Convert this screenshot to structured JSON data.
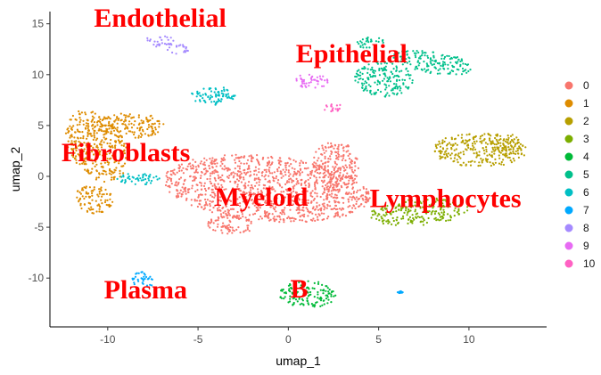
{
  "chart_data": {
    "type": "scatter",
    "title": "",
    "xlabel": "umap_1",
    "ylabel": "umap_2",
    "xlim": [
      -13.2,
      14.3
    ],
    "ylim": [
      -14.8,
      16.2
    ],
    "x_ticks": [
      -10,
      -5,
      0,
      5,
      10
    ],
    "y_ticks": [
      -10,
      -5,
      0,
      5,
      10,
      15
    ],
    "legend_position": "right",
    "legend": [
      {
        "label": "0",
        "color": "#F8766D"
      },
      {
        "label": "1",
        "color": "#DE8C00"
      },
      {
        "label": "2",
        "color": "#B79F00"
      },
      {
        "label": "3",
        "color": "#7CAE00"
      },
      {
        "label": "4",
        "color": "#00BA38"
      },
      {
        "label": "5",
        "color": "#00C08B"
      },
      {
        "label": "6",
        "color": "#00BFC4"
      },
      {
        "label": "7",
        "color": "#00A9FF"
      },
      {
        "label": "8",
        "color": "#A58AFF"
      },
      {
        "label": "9",
        "color": "#E76BF3"
      },
      {
        "label": "10",
        "color": "#FF61C3"
      }
    ],
    "clusters": [
      {
        "id": "0",
        "blobs": [
          [
            -1.2,
            -1.2,
            5.8,
            3.2,
            -0.2
          ],
          [
            2.6,
            1.0,
            1.3,
            2.5,
            0.0
          ],
          [
            -3.2,
            -4.8,
            1.4,
            1.0,
            0.0
          ]
        ]
      },
      {
        "id": "1",
        "blobs": [
          [
            -10.6,
            3.0,
            1.6,
            3.6,
            0.2
          ],
          [
            -8.8,
            5.0,
            1.9,
            1.3,
            0.0
          ],
          [
            -10.8,
            -2.3,
            1.1,
            1.4,
            0.0
          ]
        ]
      },
      {
        "id": "2",
        "blobs": [
          [
            10.6,
            2.6,
            2.6,
            1.7,
            0.0
          ],
          [
            12.1,
            3.1,
            0.9,
            1.1,
            0.0
          ]
        ]
      },
      {
        "id": "3",
        "blobs": [
          [
            7.2,
            -3.5,
            2.8,
            1.3,
            0.15
          ]
        ]
      },
      {
        "id": "4",
        "blobs": [
          [
            1.1,
            -11.6,
            1.6,
            1.3,
            0.0
          ]
        ]
      },
      {
        "id": "5",
        "blobs": [
          [
            5.3,
            9.6,
            1.6,
            1.8,
            0.3
          ],
          [
            8.0,
            11.2,
            2.3,
            1.1,
            -0.35
          ],
          [
            4.6,
            13.1,
            0.8,
            0.6,
            0.0
          ]
        ]
      },
      {
        "id": "6",
        "blobs": [
          [
            -4.3,
            7.9,
            1.1,
            0.9,
            0.0
          ],
          [
            -3.4,
            8.2,
            0.5,
            0.8,
            0.0
          ],
          [
            -8.2,
            -0.2,
            1.3,
            0.6,
            0.0
          ]
        ]
      },
      {
        "id": "7",
        "blobs": [
          [
            -8.1,
            -10.2,
            0.7,
            0.8,
            0.0
          ],
          [
            6.2,
            -11.4,
            0.15,
            0.12,
            0.0
          ]
        ]
      },
      {
        "id": "8",
        "blobs": [
          [
            -7.1,
            13.3,
            0.8,
            0.6,
            0.0
          ],
          [
            -6.1,
            12.5,
            0.6,
            0.5,
            0.0
          ]
        ]
      },
      {
        "id": "9",
        "blobs": [
          [
            1.3,
            9.4,
            0.9,
            0.8,
            0.0
          ]
        ]
      },
      {
        "id": "10",
        "blobs": [
          [
            2.4,
            6.8,
            0.5,
            0.6,
            0.0
          ]
        ]
      }
    ],
    "annotations": [
      {
        "text": "Endothelial",
        "x": -7.1,
        "y": 14.7
      },
      {
        "text": "Epithelial",
        "x": 3.5,
        "y": 11.2
      },
      {
        "text": "Fibroblasts",
        "x": -9.0,
        "y": 1.5
      },
      {
        "text": "Myeloid",
        "x": -1.5,
        "y": -2.9
      },
      {
        "text": "Lymphocytes",
        "x": 8.7,
        "y": -3.0
      },
      {
        "text": "Plasma",
        "x": -7.9,
        "y": -12.0
      },
      {
        "text": "B",
        "x": 0.6,
        "y": -11.9
      }
    ]
  }
}
